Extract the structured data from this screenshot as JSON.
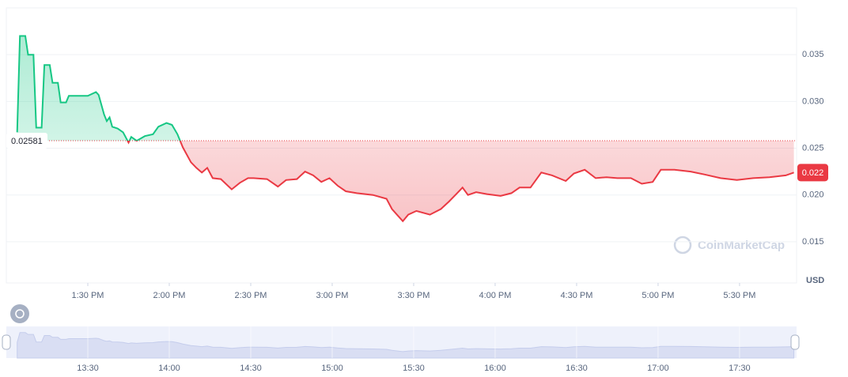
{
  "chart_data": {
    "type": "line",
    "x": [
      "13:04",
      "13:05",
      "13:07",
      "13:08",
      "13:10",
      "13:11",
      "13:13",
      "13:14",
      "13:16",
      "13:17",
      "13:19",
      "13:20",
      "13:22",
      "13:23",
      "13:30",
      "13:33",
      "13:34",
      "13:36",
      "13:37",
      "13:38",
      "13:39",
      "13:41",
      "13:43",
      "13:45",
      "13:46",
      "13:48",
      "13:51",
      "13:54",
      "13:56",
      "13:59",
      "14:01",
      "14:03",
      "14:05",
      "14:08",
      "14:10",
      "14:12",
      "14:14",
      "14:16",
      "14:19",
      "14:23",
      "14:26",
      "14:29",
      "14:31",
      "14:36",
      "14:40",
      "14:43",
      "14:47",
      "14:50",
      "14:53",
      "14:56",
      "14:59",
      "15:02",
      "15:05",
      "15:09",
      "15:15",
      "15:20",
      "15:22",
      "15:26",
      "15:28",
      "15:31",
      "15:36",
      "15:40",
      "15:43",
      "15:46",
      "15:48",
      "15:50",
      "15:53",
      "15:57",
      "16:02",
      "16:06",
      "16:09",
      "16:13",
      "16:17",
      "16:21",
      "16:26",
      "16:29",
      "16:33",
      "16:37",
      "16:41",
      "16:45",
      "16:50",
      "16:54",
      "16:58",
      "17:01",
      "17:06",
      "17:12",
      "17:17",
      "17:23",
      "17:29",
      "17:35",
      "17:41",
      "17:47",
      "17:50"
    ],
    "values": [
      0.0267,
      0.037,
      0.037,
      0.035,
      0.035,
      0.0272,
      0.0272,
      0.0339,
      0.0339,
      0.032,
      0.032,
      0.0299,
      0.0299,
      0.0306,
      0.0306,
      0.031,
      0.0307,
      0.0286,
      0.0279,
      0.0283,
      0.0273,
      0.0271,
      0.0267,
      0.0256,
      0.0262,
      0.0258,
      0.0263,
      0.0265,
      0.0273,
      0.0277,
      0.0275,
      0.0265,
      0.0251,
      0.0235,
      0.0229,
      0.0224,
      0.0229,
      0.0218,
      0.0217,
      0.0206,
      0.0213,
      0.0218,
      0.0218,
      0.0217,
      0.0209,
      0.0216,
      0.0217,
      0.0225,
      0.0221,
      0.0214,
      0.0218,
      0.021,
      0.0204,
      0.0202,
      0.02,
      0.0196,
      0.0185,
      0.0172,
      0.0179,
      0.0183,
      0.0179,
      0.0185,
      0.0193,
      0.0202,
      0.0208,
      0.02,
      0.0203,
      0.0201,
      0.0199,
      0.0202,
      0.0208,
      0.0208,
      0.0224,
      0.0221,
      0.0215,
      0.0223,
      0.0227,
      0.0218,
      0.0219,
      0.0218,
      0.0218,
      0.0212,
      0.0214,
      0.0227,
      0.0227,
      0.0225,
      0.0222,
      0.0218,
      0.0216,
      0.0218,
      0.0219,
      0.0221,
      0.0224
    ],
    "baseline": 0.02581,
    "up_color": "#16c784",
    "down_color": "#ea3943",
    "last_value_label": "0.022",
    "ylim": [
      0.0106,
      0.04
    ],
    "yticks": [
      0.015,
      {
        "value": 0.02,
        "label": "0.020"
      },
      0.025,
      {
        "value": 0.03,
        "label": "0.030"
      },
      0.035
    ],
    "y_axis_label": "USD",
    "xlim": [
      "13:00",
      "17:51"
    ],
    "xticks": [
      {
        "value": "13:30",
        "label": "1:30 PM"
      },
      {
        "value": "14:00",
        "label": "2:00 PM"
      },
      {
        "value": "14:30",
        "label": "2:30 PM"
      },
      {
        "value": "15:00",
        "label": "3:00 PM"
      },
      {
        "value": "15:30",
        "label": "3:30 PM"
      },
      {
        "value": "16:00",
        "label": "4:00 PM"
      },
      {
        "value": "16:30",
        "label": "4:30 PM"
      },
      {
        "value": "17:00",
        "label": "5:00 PM"
      },
      {
        "value": "17:30",
        "label": "5:30 PM"
      }
    ],
    "navigator_xticks": [
      "13:30",
      "14:00",
      "14:30",
      "15:00",
      "15:30",
      "16:00",
      "16:30",
      "17:00",
      "17:30"
    ],
    "watermark": "CoinMarketCap",
    "grid": true
  }
}
